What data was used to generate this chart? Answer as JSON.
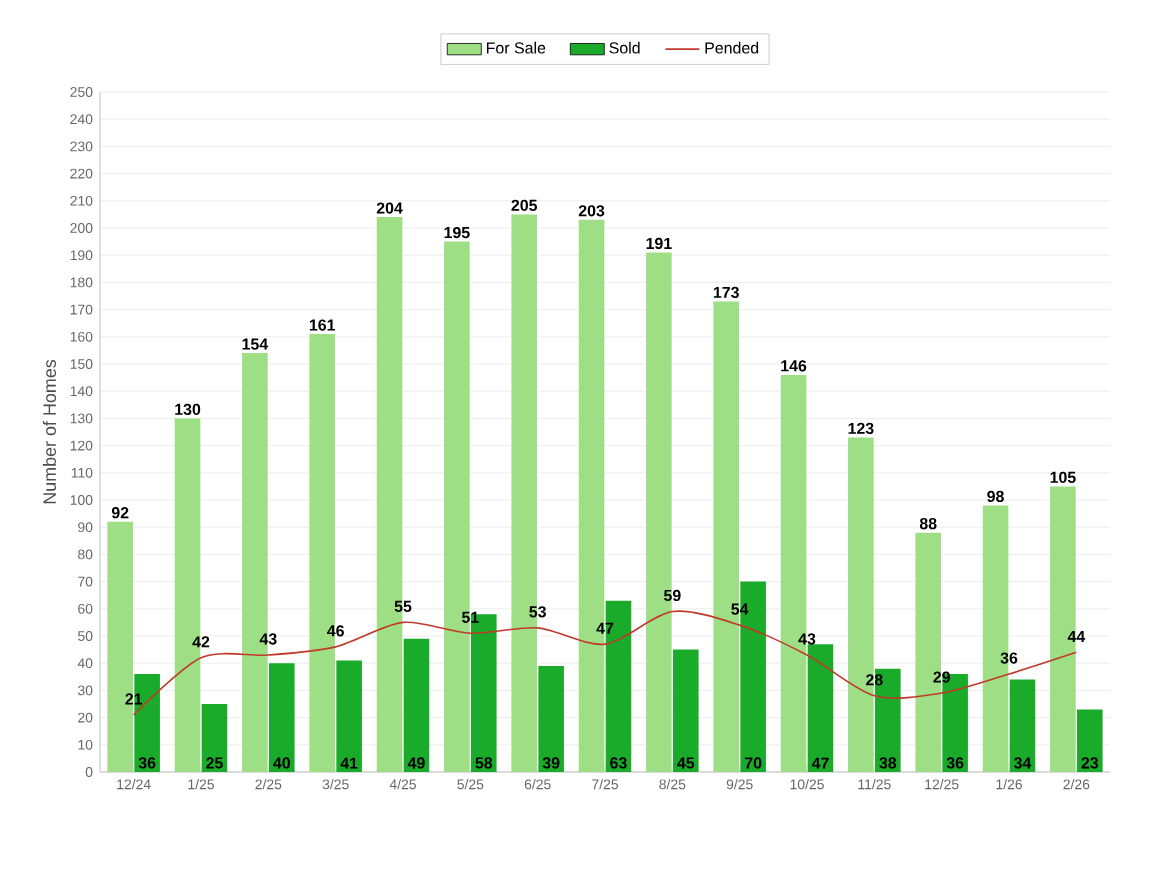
{
  "chart_data": {
    "type": "bar",
    "ylabel": "Number of Homes",
    "categories": [
      "12/24",
      "1/25",
      "2/25",
      "3/25",
      "4/25",
      "5/25",
      "6/25",
      "7/25",
      "8/25",
      "9/25",
      "10/25",
      "11/25",
      "12/25",
      "1/26",
      "2/26"
    ],
    "series": [
      {
        "name": "For Sale",
        "color": "#9ede85",
        "values": [
          92,
          130,
          154,
          161,
          204,
          195,
          205,
          203,
          191,
          173,
          146,
          123,
          88,
          98,
          105
        ]
      },
      {
        "name": "Sold",
        "color": "#1aab2a",
        "values": [
          36,
          25,
          40,
          41,
          49,
          58,
          39,
          63,
          45,
          70,
          47,
          38,
          36,
          34,
          23
        ]
      },
      {
        "name": "Pended",
        "type": "line",
        "color": "#c0392b",
        "values": [
          21,
          42,
          43,
          46,
          55,
          51,
          53,
          47,
          59,
          54,
          43,
          28,
          29,
          36,
          44
        ]
      }
    ],
    "ylim": [
      0,
      250
    ],
    "yticks": [
      0,
      10,
      20,
      30,
      40,
      50,
      60,
      70,
      80,
      90,
      100,
      110,
      120,
      130,
      140,
      150,
      160,
      170,
      180,
      190,
      200,
      210,
      220,
      230,
      240,
      250
    ],
    "grid": "y",
    "legend": "top",
    "data_labels": true,
    "marker": "none"
  }
}
